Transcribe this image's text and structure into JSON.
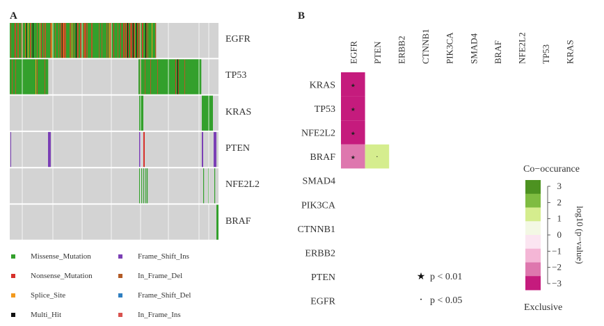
{
  "panel_a": {
    "label": "A",
    "genes": [
      "EGFR",
      "TP53",
      "KRAS",
      "PTEN",
      "NFE2L2",
      "BRAF"
    ],
    "legend": [
      {
        "label": "Missense_Mutation",
        "color": "#33a02c"
      },
      {
        "label": "Frame_Shift_Ins",
        "color": "#7b3fb5"
      },
      {
        "label": "Nonsense_Mutation",
        "color": "#d7302b"
      },
      {
        "label": "In_Frame_Del",
        "color": "#b35b26"
      },
      {
        "label": "Splice_Site",
        "color": "#f39a1e"
      },
      {
        "label": "Frame_Shift_Del",
        "color": "#2f7fc1"
      },
      {
        "label": "Multi_Hit",
        "color": "#111111"
      },
      {
        "label": "In_Frame_Ins",
        "color": "#d9534f"
      }
    ]
  },
  "panel_b": {
    "label": "B",
    "col_genes": [
      "EGFR",
      "PTEN",
      "ERBB2",
      "CTNNB1",
      "PIK3CA",
      "SMAD4",
      "BRAF",
      "NFE2L2",
      "TP53",
      "KRAS"
    ],
    "row_genes": [
      "KRAS",
      "TP53",
      "NFE2L2",
      "BRAF",
      "SMAD4",
      "PIK3CA",
      "CTNNB1",
      "ERBB2",
      "PTEN",
      "EGFR"
    ],
    "significance": [
      {
        "symbol": "★",
        "label": "p < 0.01"
      },
      {
        "symbol": "·",
        "label": "p < 0.05"
      }
    ],
    "colorbar": {
      "title_top": "Co−occurance",
      "title_bottom": "Exclusive",
      "axis_label": "log10 (p−value)",
      "ticks": [
        "3",
        "2",
        "1",
        "0",
        "−1",
        "−2",
        "−3"
      ],
      "colors": [
        "#4d9221",
        "#7fbc41",
        "#d5ed8e",
        "#f3f8e4",
        "#fbe5f1",
        "#f4b6d6",
        "#de77ae",
        "#c51b7d"
      ]
    }
  },
  "chart_data": {
    "type": "heatmap",
    "cells": [
      {
        "row": "KRAS",
        "col": "EGFR",
        "log10_p": -3,
        "sig": "p < 0.01"
      },
      {
        "row": "TP53",
        "col": "EGFR",
        "log10_p": -3,
        "sig": "p < 0.01"
      },
      {
        "row": "NFE2L2",
        "col": "EGFR",
        "log10_p": -3,
        "sig": "p < 0.01"
      },
      {
        "row": "BRAF",
        "col": "EGFR",
        "log10_p": -2,
        "sig": "p < 0.01"
      },
      {
        "row": "BRAF",
        "col": "PTEN",
        "log10_p": 1,
        "sig": "p < 0.05"
      }
    ],
    "colorbar_range": [
      -3,
      3
    ]
  }
}
